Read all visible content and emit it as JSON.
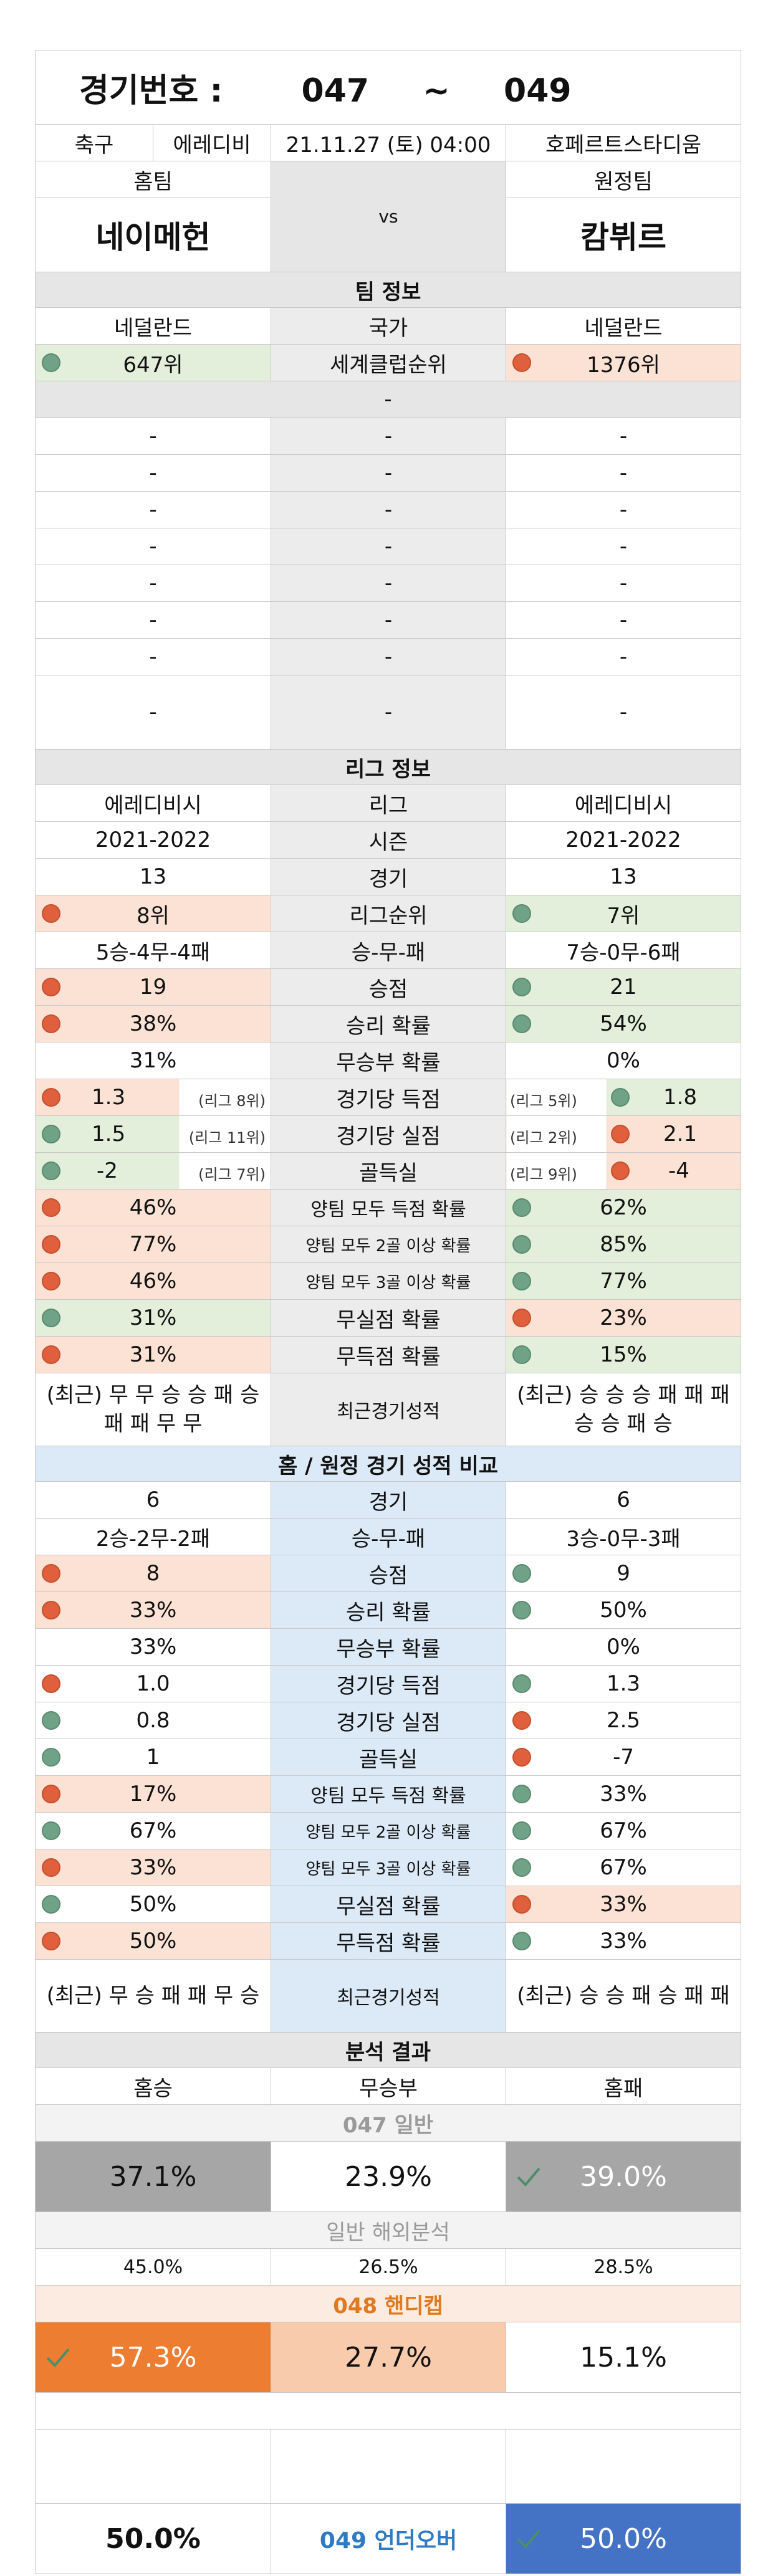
{
  "header": {
    "label": "경기번호 :",
    "from": "047",
    "sep": "~",
    "to": "049"
  },
  "match": {
    "sport": "축구",
    "league": "에레디비",
    "date": "21.11.27 (토) 04:00",
    "venue": "호페르트스타디움"
  },
  "teams": {
    "home_label": "홈팀",
    "away_label": "원정팀",
    "home": "네이메헌",
    "vs": "vs",
    "away": "캄뷔르"
  },
  "team_info": {
    "title": "팀 정보",
    "country_label": "국가",
    "home_country": "네덜란드",
    "away_country": "네덜란드",
    "rank_label": "세계클럽순위",
    "home_rank": "647위",
    "away_rank": "1376위",
    "blank_row": "-",
    "dash_rows": [
      [
        "-",
        "-",
        "-"
      ],
      [
        "-",
        "-",
        "-"
      ],
      [
        "-",
        "-",
        "-"
      ],
      [
        "-",
        "-",
        "-"
      ],
      [
        "-",
        "-",
        "-"
      ],
      [
        "-",
        "-",
        "-"
      ],
      [
        "-",
        "-",
        "-"
      ],
      [
        "-",
        "-",
        "-"
      ]
    ]
  },
  "league_info": {
    "title": "리그 정보",
    "rows": [
      {
        "label": "리그",
        "home": "에레디비시",
        "away": "에레디비시"
      },
      {
        "label": "시즌",
        "home": "2021-2022",
        "away": "2021-2022"
      },
      {
        "label": "경기",
        "home": "13",
        "away": "13"
      }
    ],
    "rank": {
      "label": "리그순위",
      "home": "8위",
      "away": "7위"
    },
    "record": {
      "label": "승-무-패",
      "home": "5승-4무-4패",
      "away": "7승-0무-6패"
    },
    "points": {
      "label": "승점",
      "home": "19",
      "away": "21"
    },
    "winp": {
      "label": "승리 확률",
      "home": "38%",
      "away": "54%"
    },
    "drawp": {
      "label": "무승부 확률",
      "home": "31%",
      "away": "0%"
    },
    "gf": {
      "label": "경기당 득점",
      "home": "1.3",
      "home_rank": "(리그 8위)",
      "away": "1.8",
      "away_rank": "(리그 5위)"
    },
    "ga": {
      "label": "경기당 실점",
      "home": "1.5",
      "home_rank": "(리그 11위)",
      "away": "2.1",
      "away_rank": "(리그 2위)"
    },
    "gd": {
      "label": "골득실",
      "home": "-2",
      "home_rank": "(리그 7위)",
      "away": "-4",
      "away_rank": "(리그 9위)"
    },
    "btts": {
      "label": "양팀 모두 득점 확률",
      "home": "46%",
      "away": "62%"
    },
    "btts2": {
      "label": "양팀 모두 2골 이상 확률",
      "home": "77%",
      "away": "85%"
    },
    "btts3": {
      "label": "양팀 모두 3골 이상 확률",
      "home": "46%",
      "away": "77%"
    },
    "cs": {
      "label": "무실점 확률",
      "home": "31%",
      "away": "23%"
    },
    "fts": {
      "label": "무득점 확률",
      "home": "31%",
      "away": "15%"
    },
    "recent": {
      "label": "최근경기성적",
      "home": "(최근) 무 무 승 승 패 승 패 패 무 무",
      "away": "(최근) 승 승 승 패 패 패 승 승 패 승"
    }
  },
  "venue_info": {
    "title": "홈 / 원정 경기 성적 비교",
    "games": {
      "label": "경기",
      "home": "6",
      "away": "6"
    },
    "record": {
      "label": "승-무-패",
      "home": "2승-2무-2패",
      "away": "3승-0무-3패"
    },
    "points": {
      "label": "승점",
      "home": "8",
      "away": "9"
    },
    "winp": {
      "label": "승리 확률",
      "home": "33%",
      "away": "50%"
    },
    "drawp": {
      "label": "무승부 확률",
      "home": "33%",
      "away": "0%"
    },
    "gf": {
      "label": "경기당 득점",
      "home": "1.0",
      "away": "1.3"
    },
    "ga": {
      "label": "경기당 실점",
      "home": "0.8",
      "away": "2.5"
    },
    "gd": {
      "label": "골득실",
      "home": "1",
      "away": "-7"
    },
    "btts": {
      "label": "양팀 모두 득점 확률",
      "home": "17%",
      "away": "33%"
    },
    "btts2": {
      "label": "양팀 모두 2골 이상 확률",
      "home": "67%",
      "away": "67%"
    },
    "btts3": {
      "label": "양팀 모두 3골 이상 확률",
      "home": "33%",
      "away": "67%"
    },
    "cs": {
      "label": "무실점 확률",
      "home": "50%",
      "away": "33%"
    },
    "fts": {
      "label": "무득점 확률",
      "home": "50%",
      "away": "33%"
    },
    "recent": {
      "label": "최근경기성적",
      "home": "(최근) 무 승 패 패 무 승",
      "away": "(최근) 승 승 패 승 패 패"
    }
  },
  "analysis": {
    "title": "분석 결과",
    "cols": [
      "홈승",
      "무승부",
      "홈패"
    ],
    "general_label": "047 일반",
    "general": [
      "37.1%",
      "23.9%",
      "39.0%"
    ],
    "overseas_label": "일반 해외분석",
    "overseas": [
      "45.0%",
      "26.5%",
      "28.5%"
    ],
    "handicap_label": "048 핸디캡",
    "handicap": [
      "57.3%",
      "27.7%",
      "15.1%"
    ],
    "uo_label": "049 언더오버",
    "uo": [
      "50.0%",
      "50.0%"
    ]
  },
  "colors": {
    "green": "#e3efda",
    "red": "#fbe2d5",
    "gray": "#a6a6a6",
    "orange": "#ed7d31",
    "light_orange": "#f8cbad",
    "blue": "#4472c4"
  }
}
